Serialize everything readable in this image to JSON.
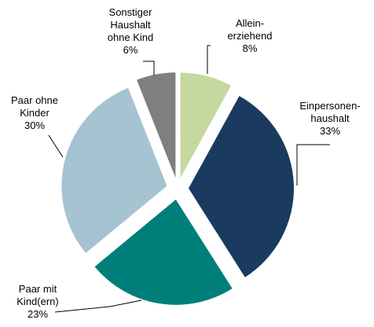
{
  "chart_data": {
    "type": "pie",
    "categories": [
      "Allein-\nerziehend",
      "Einpersonen-\nhaushalt",
      "Paar mit\nKind(ern)",
      "Paar ohne\nKinder",
      "Sonstiger\nHaushalt\nohne Kind"
    ],
    "values": [
      8,
      33,
      23,
      30,
      6
    ],
    "value_labels": [
      "8%",
      "33%",
      "23%",
      "30%",
      "6%"
    ],
    "colors": [
      "#c4d89f",
      "#1a3a5f",
      "#007f7a",
      "#a6c3d1",
      "#7f7f7f"
    ],
    "exploded": true
  }
}
